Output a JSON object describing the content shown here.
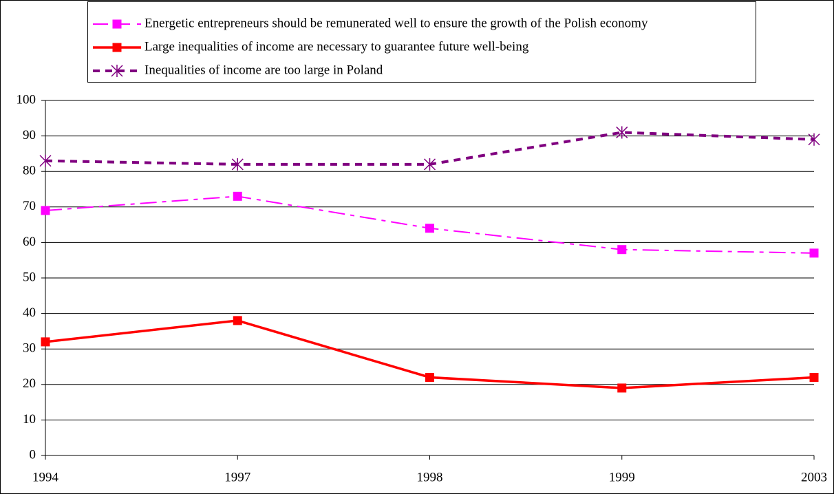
{
  "chart_data": {
    "type": "line",
    "categories": [
      "1994",
      "1997",
      "1998",
      "1999",
      "2003"
    ],
    "series": [
      {
        "name": "Energetic entrepreneurs should  be remunerated well to ensure the growth of the Polish economy",
        "color": "#ff00ff",
        "values": [
          69,
          73,
          64,
          58,
          57
        ]
      },
      {
        "name": "Large inequalities of income are necessary to guarantee future well-being",
        "color": "#ff0000",
        "values": [
          32,
          38,
          22,
          19,
          22
        ]
      },
      {
        "name": "Inequalities of income are too large in Poland",
        "color": "#800080",
        "values": [
          83,
          82,
          82,
          91,
          89
        ]
      }
    ],
    "ylim": [
      0,
      100
    ],
    "yticks": [
      0,
      10,
      20,
      30,
      40,
      50,
      60,
      70,
      80,
      90,
      100
    ],
    "grid": true,
    "legend": "top"
  }
}
